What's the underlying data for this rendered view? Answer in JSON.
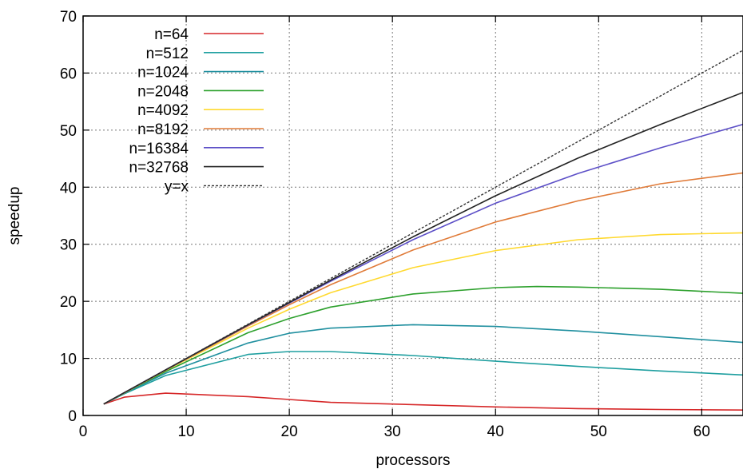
{
  "chart_data": {
    "type": "line",
    "xlabel": "processors",
    "ylabel": "speedup",
    "xlim": [
      0,
      64
    ],
    "ylim": [
      0,
      70
    ],
    "x_ticks": [
      0,
      10,
      20,
      30,
      40,
      50,
      60
    ],
    "y_ticks": [
      0,
      10,
      20,
      30,
      40,
      50,
      60,
      70
    ],
    "grid": true,
    "legend_position": "top-left",
    "series": [
      {
        "name": "n=64",
        "color": "#d62728",
        "dash": false,
        "x": [
          2,
          4,
          8,
          16,
          20,
          24,
          32,
          40,
          48,
          56,
          64
        ],
        "y": [
          2.0,
          3.2,
          3.9,
          3.3,
          2.8,
          2.3,
          1.9,
          1.5,
          1.2,
          1.05,
          0.95
        ]
      },
      {
        "name": "n=512",
        "color": "#1f9fa0",
        "dash": false,
        "x": [
          2,
          4,
          8,
          16,
          20,
          24,
          32,
          40,
          48,
          56,
          64
        ],
        "y": [
          2.0,
          3.8,
          7.0,
          10.7,
          11.2,
          11.2,
          10.5,
          9.5,
          8.6,
          7.8,
          7.1
        ]
      },
      {
        "name": "n=1024",
        "color": "#1f8f9f",
        "dash": false,
        "x": [
          2,
          4,
          8,
          16,
          20,
          24,
          32,
          40,
          48,
          56,
          64
        ],
        "y": [
          2.0,
          3.9,
          7.4,
          12.7,
          14.4,
          15.3,
          15.9,
          15.6,
          14.8,
          13.8,
          12.8
        ]
      },
      {
        "name": "n=2048",
        "color": "#2ca02c",
        "dash": false,
        "x": [
          2,
          4,
          8,
          16,
          20,
          24,
          32,
          40,
          44,
          48,
          56,
          64
        ],
        "y": [
          2.0,
          3.95,
          7.7,
          14.5,
          17.0,
          19.0,
          21.3,
          22.4,
          22.6,
          22.5,
          22.1,
          21.4
        ]
      },
      {
        "name": "n=4092",
        "color": "#ffd92f",
        "dash": false,
        "x": [
          2,
          4,
          8,
          16,
          20,
          24,
          32,
          40,
          48,
          56,
          64
        ],
        "y": [
          2.0,
          3.95,
          7.9,
          15.3,
          18.6,
          21.5,
          25.9,
          28.9,
          30.8,
          31.7,
          32.0
        ]
      },
      {
        "name": "n=8192",
        "color": "#e07b39",
        "dash": false,
        "x": [
          2,
          4,
          8,
          16,
          20,
          24,
          32,
          40,
          48,
          56,
          64
        ],
        "y": [
          2.0,
          4.0,
          7.95,
          15.7,
          19.4,
          22.9,
          29.0,
          33.9,
          37.6,
          40.6,
          42.5
        ]
      },
      {
        "name": "n=16384",
        "color": "#5c4fc7",
        "dash": false,
        "x": [
          2,
          4,
          8,
          16,
          20,
          24,
          32,
          40,
          48,
          56,
          64
        ],
        "y": [
          2.0,
          4.0,
          7.98,
          15.85,
          19.7,
          23.5,
          30.8,
          37.2,
          42.4,
          46.9,
          51.0
        ]
      },
      {
        "name": "n=32768",
        "color": "#222222",
        "dash": false,
        "x": [
          2,
          4,
          8,
          16,
          20,
          24,
          32,
          40,
          48,
          56,
          64
        ],
        "y": [
          2.0,
          4.0,
          8.0,
          15.9,
          19.8,
          23.7,
          31.3,
          38.5,
          45.1,
          51.0,
          56.6
        ]
      },
      {
        "name": "y=x",
        "color": "#333333",
        "dash": true,
        "x": [
          2,
          64
        ],
        "y": [
          2,
          64
        ]
      }
    ]
  }
}
